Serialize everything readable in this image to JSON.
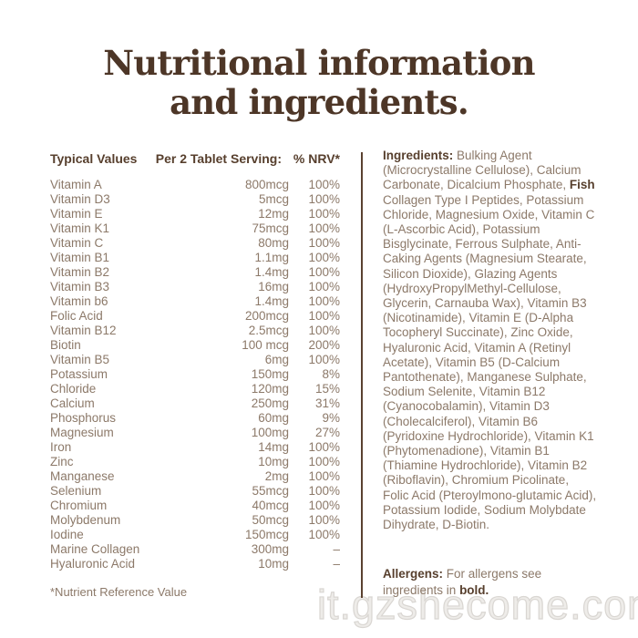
{
  "header": {
    "title_line1": "Nutritional information",
    "title_line2": "and ingredients."
  },
  "colors": {
    "title_brown": "#4d3627",
    "heading_brown": "#573f2d",
    "body_taupe": "#8c7969",
    "divider_brown": "#5a4130",
    "watermark_gray": "#d9d6d2"
  },
  "nutrition": {
    "headers": {
      "name": "Typical Values",
      "serving": "Per 2 Tablet Serving:",
      "nrv": "% NRV*"
    },
    "rows": [
      {
        "name": "Vitamin A",
        "amount": "800mcg",
        "nrv": "100%"
      },
      {
        "name": "Vitamin D3",
        "amount": "5mcg",
        "nrv": "100%"
      },
      {
        "name": "Vitamin E",
        "amount": "12mg",
        "nrv": "100%"
      },
      {
        "name": "Vitamin K1",
        "amount": "75mcg",
        "nrv": "100%"
      },
      {
        "name": "Vitamin C",
        "amount": "80mg",
        "nrv": "100%"
      },
      {
        "name": "Vitamin B1",
        "amount": "1.1mg",
        "nrv": "100%"
      },
      {
        "name": "Vitamin B2",
        "amount": "1.4mg",
        "nrv": "100%"
      },
      {
        "name": "Vitamin B3",
        "amount": "16mg",
        "nrv": "100%"
      },
      {
        "name": "Vitamin b6",
        "amount": "1.4mg",
        "nrv": "100%"
      },
      {
        "name": "Folic Acid",
        "amount": "200mcg",
        "nrv": "100%"
      },
      {
        "name": "Vitamin B12",
        "amount": "2.5mcg",
        "nrv": "100%"
      },
      {
        "name": "Biotin",
        "amount": "100 mcg",
        "nrv": "200%"
      },
      {
        "name": "Vitamin B5",
        "amount": "6mg",
        "nrv": "100%"
      },
      {
        "name": "Potassium",
        "amount": "150mg",
        "nrv": "8%"
      },
      {
        "name": "Chloride",
        "amount": "120mg",
        "nrv": "15%"
      },
      {
        "name": "Calcium",
        "amount": "250mg",
        "nrv": "31%"
      },
      {
        "name": "Phosphorus",
        "amount": "60mg",
        "nrv": "9%"
      },
      {
        "name": "Magnesium",
        "amount": "100mg",
        "nrv": "27%"
      },
      {
        "name": "Iron",
        "amount": "14mg",
        "nrv": "100%"
      },
      {
        "name": "Zinc",
        "amount": "10mg",
        "nrv": "100%"
      },
      {
        "name": "Manganese",
        "amount": "2mg",
        "nrv": "100%"
      },
      {
        "name": "Selenium",
        "amount": "55mcg",
        "nrv": "100%"
      },
      {
        "name": "Chromium",
        "amount": "40mcg",
        "nrv": "100%"
      },
      {
        "name": "Molybdenum",
        "amount": "50mcg",
        "nrv": "100%"
      },
      {
        "name": "Iodine",
        "amount": "150mcg",
        "nrv": "100%"
      },
      {
        "name": "Marine Collagen",
        "amount": "300mg",
        "nrv": "–"
      },
      {
        "name": "Hyaluronic Acid",
        "amount": "10mg",
        "nrv": "–"
      }
    ],
    "footnote": "*Nutrient Reference Value"
  },
  "ingredients": {
    "segments": [
      {
        "text": "Ingredients: ",
        "bold": true
      },
      {
        "text": "Bulking Agent (Microcrystalline Cellulose), Calcium Carbonate, Dicalcium Phosphate, ",
        "bold": false
      },
      {
        "text": "Fish",
        "bold": true
      },
      {
        "text": " Collagen Type I Peptides, Potassium Chloride, Magnesium Oxide, Vitamin C (L-Ascorbic Acid), Potassium Bisglycinate, Ferrous Sulphate, Anti-Caking Agents (Magnesium Stearate, Silicon Dioxide), Glazing Agents (HydroxyPropylMethyl-Cellulose, Glycerin, Carnauba Wax), Vitamin B3 (Nicotinamide), Vitamin E (D-Alpha Tocopheryl Succinate), Zinc Oxide, Hyaluronic Acid, Vitamin A (Retinyl Acetate), Vitamin B5 (D-Calcium Pantothenate), Manganese Sulphate, Sodium Selenite, Vitamin B12 (Cyanocobalamin), Vitamin D3 (Cholecalciferol), Vitamin B6 (Pyridoxine Hydrochloride), Vitamin K1 (Phytomenadione), Vitamin B1 (Thiamine Hydrochloride), Vitamin B2 (Riboflavin), Chromium Picolinate, Folic Acid (Pteroylmono-glutamic Acid), Potassium Iodide, Sodium Molybdate Dihydrate, D-Biotin.",
        "bold": false
      }
    ]
  },
  "allergens": {
    "segments": [
      {
        "text": "Allergens: ",
        "bold": true
      },
      {
        "text": "For allergens see ingredients in ",
        "bold": false
      },
      {
        "text": "bold.",
        "bold": true
      }
    ]
  },
  "watermark": "it.gzshecome.com"
}
